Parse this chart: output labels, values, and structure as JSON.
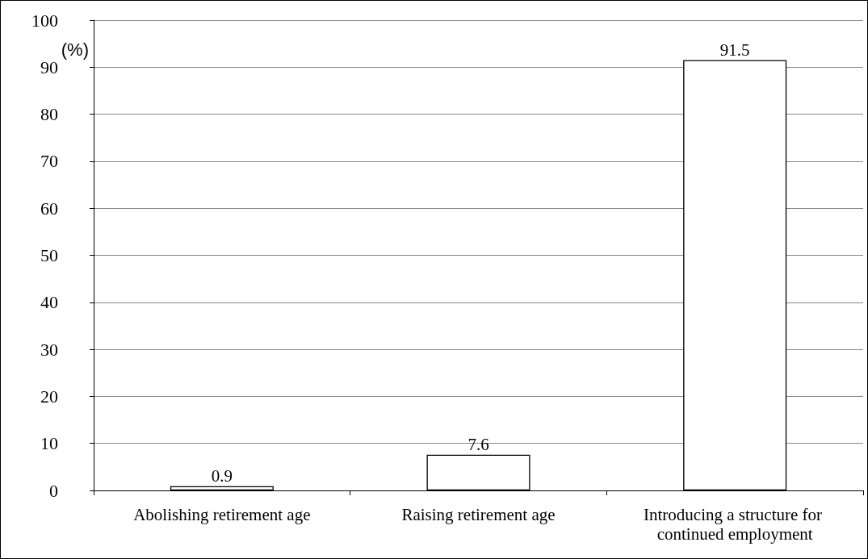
{
  "chart_data": {
    "type": "bar",
    "ylabel": "(%)",
    "categories": [
      "Abolishing retirement age",
      "Raising retirement age",
      "Introducing a structure for continued employment"
    ],
    "values": [
      0.9,
      7.6,
      91.5
    ],
    "color": "#ffffff",
    "ylim": [
      0,
      100
    ],
    "yticks": [
      0,
      10,
      20,
      30,
      40,
      50,
      60,
      70,
      80,
      90,
      100
    ],
    "grid": "y",
    "data_labels": true
  }
}
